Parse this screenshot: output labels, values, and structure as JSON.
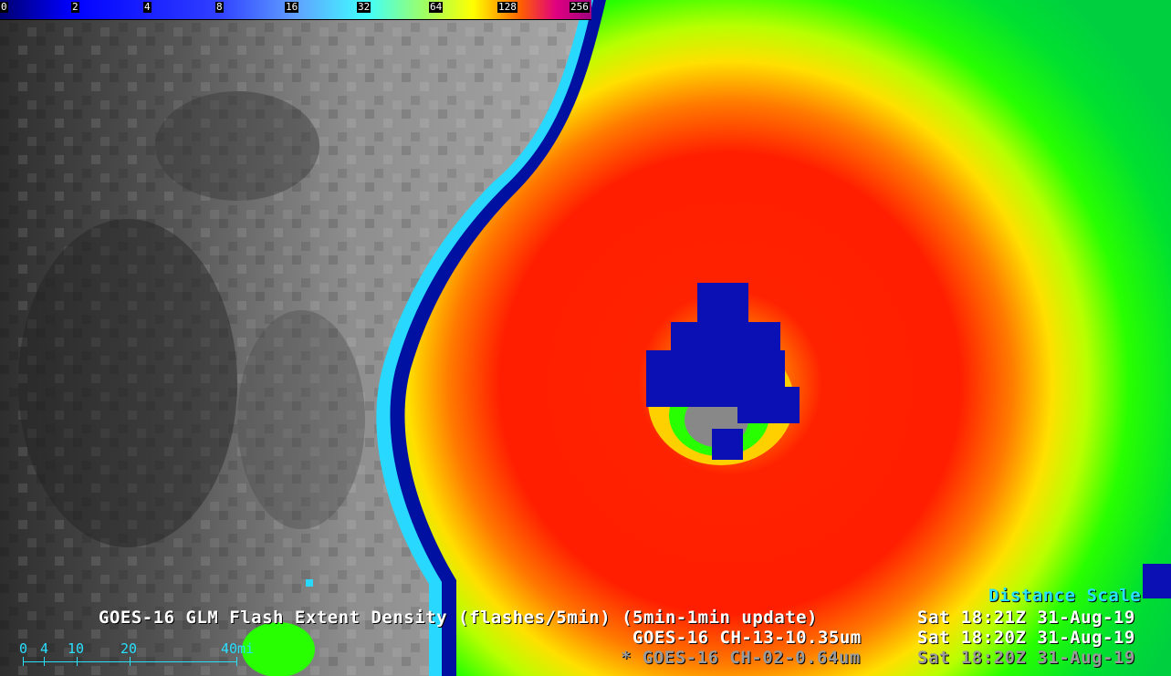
{
  "colorbar": {
    "labels": [
      "0",
      "2",
      "4",
      "8",
      "16",
      "32",
      "64",
      "128",
      "256"
    ]
  },
  "annotations": {
    "glm_title": "GOES-16 GLM Flash Extent Density (flashes/5min) (5min-1min update)",
    "glm_time": "Sat 18:21Z 31-Aug-19",
    "ch13_title": "GOES-16 CH-13-10.35um",
    "ch13_time": "Sat 18:20Z 31-Aug-19",
    "ch02_title": "* GOES-16 CH-02-0.64um",
    "ch02_time": "Sat 18:20Z 31-Aug-19",
    "distance_scale_label": "Distance Scale"
  },
  "distance_scale": {
    "labels": [
      "0",
      "4",
      "10",
      "20",
      "40mi"
    ]
  },
  "colors": {
    "accent_cyan": "#29e0ff",
    "glm_blue": "#0a10b4"
  }
}
